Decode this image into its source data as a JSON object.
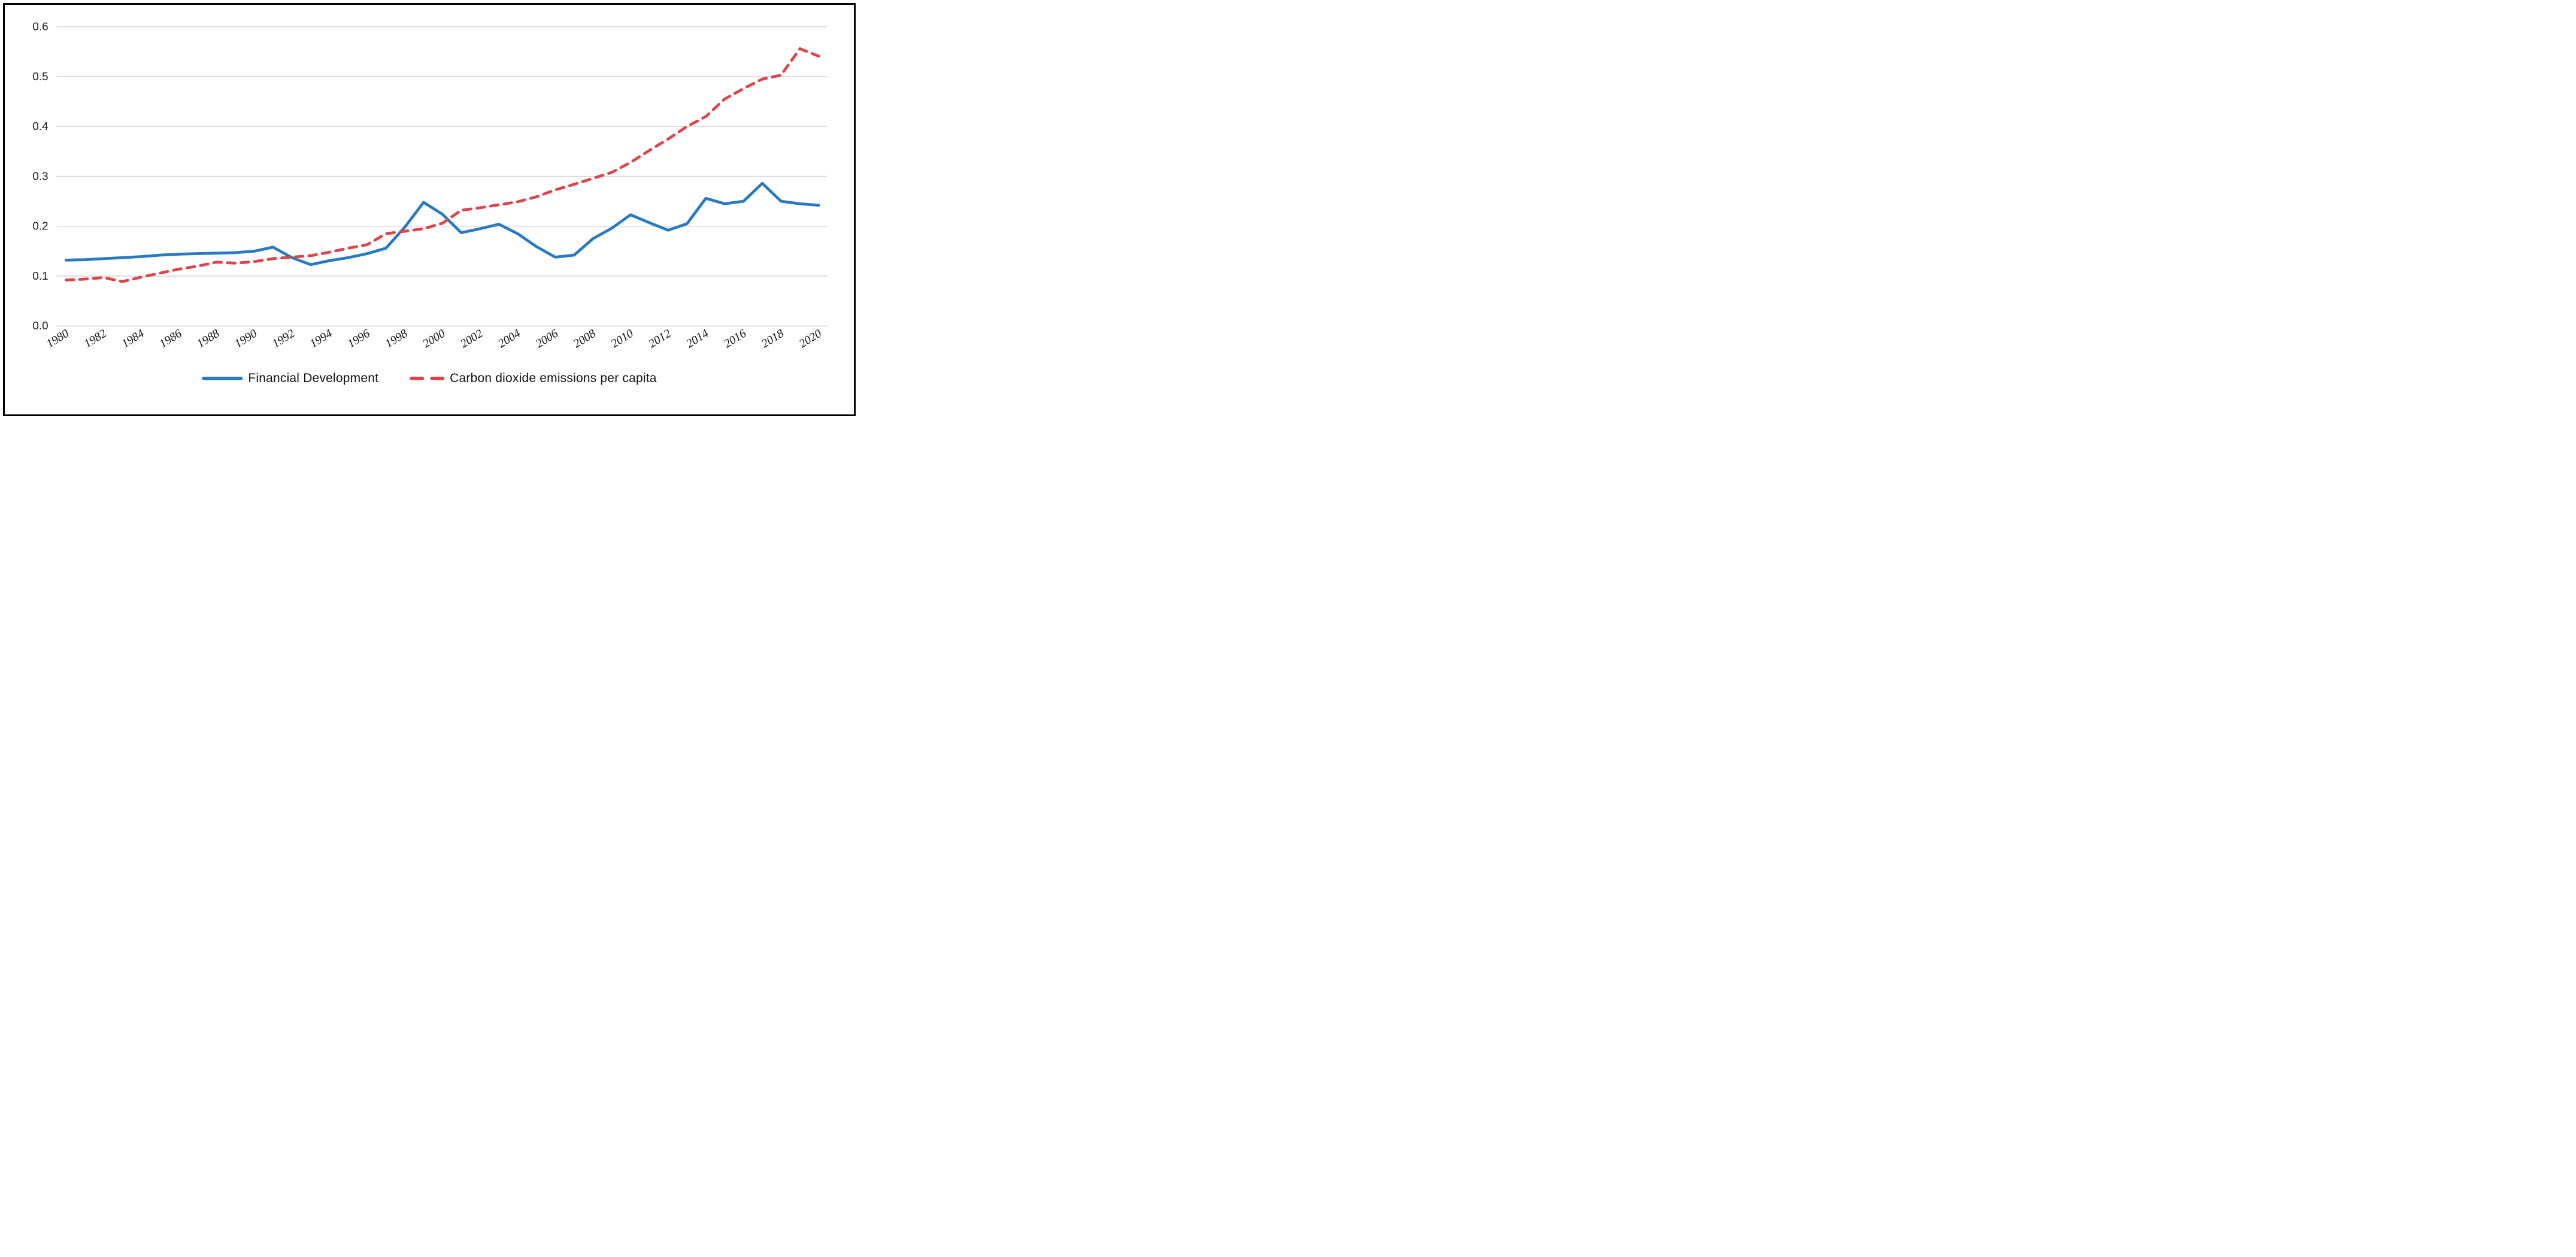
{
  "chart_data": {
    "type": "line",
    "x": [
      1980,
      1981,
      1982,
      1983,
      1984,
      1985,
      1986,
      1987,
      1988,
      1989,
      1990,
      1991,
      1992,
      1993,
      1994,
      1995,
      1996,
      1997,
      1998,
      1999,
      2000,
      2001,
      2002,
      2003,
      2004,
      2005,
      2006,
      2007,
      2008,
      2009,
      2010,
      2011,
      2012,
      2013,
      2014,
      2015,
      2016,
      2017,
      2018,
      2019,
      2020
    ],
    "series": [
      {
        "name": "Financial Development",
        "style": "solid",
        "color": "#2A7ABF",
        "values": [
          0.132,
          0.133,
          0.135,
          0.137,
          0.139,
          0.142,
          0.144,
          0.145,
          0.146,
          0.147,
          0.15,
          0.158,
          0.137,
          0.123,
          0.131,
          0.137,
          0.145,
          0.156,
          0.198,
          0.248,
          0.224,
          0.187,
          0.195,
          0.204,
          0.185,
          0.159,
          0.138,
          0.142,
          0.175,
          0.196,
          0.223,
          0.207,
          0.192,
          0.205,
          0.256,
          0.245,
          0.25,
          0.286,
          0.25,
          0.245,
          0.242
        ]
      },
      {
        "name": "Carbon dioxide emissions per capita",
        "style": "dashed",
        "color": "#DC4549",
        "values": [
          0.092,
          0.094,
          0.097,
          0.089,
          0.098,
          0.106,
          0.114,
          0.12,
          0.128,
          0.126,
          0.129,
          0.135,
          0.138,
          0.141,
          0.148,
          0.156,
          0.163,
          0.185,
          0.19,
          0.195,
          0.206,
          0.232,
          0.237,
          0.243,
          0.249,
          0.259,
          0.273,
          0.284,
          0.296,
          0.308,
          0.328,
          0.352,
          0.375,
          0.4,
          0.42,
          0.455,
          0.476,
          0.495,
          0.503,
          0.556,
          0.541
        ]
      }
    ],
    "title": "",
    "xlabel": "",
    "ylabel": "",
    "ylim": [
      0.0,
      0.6
    ],
    "ytick_labels": [
      "0.0",
      "0.1",
      "0.2",
      "0.3",
      "0.4",
      "0.5",
      "0.6"
    ],
    "xtick_labels": [
      "1980",
      "1982",
      "1984",
      "1986",
      "1988",
      "1990",
      "1992",
      "1994",
      "1996",
      "1998",
      "2000",
      "2002",
      "2004",
      "2006",
      "2008",
      "2010",
      "2012",
      "2014",
      "2016",
      "2018",
      "2020"
    ],
    "x_tick_rotation_deg": -32,
    "grid": "horizontal",
    "gridline_color": "#D8D8D8",
    "legend_position": "bottom",
    "background_color": "#FFFFFF",
    "border_color": "#000000"
  }
}
